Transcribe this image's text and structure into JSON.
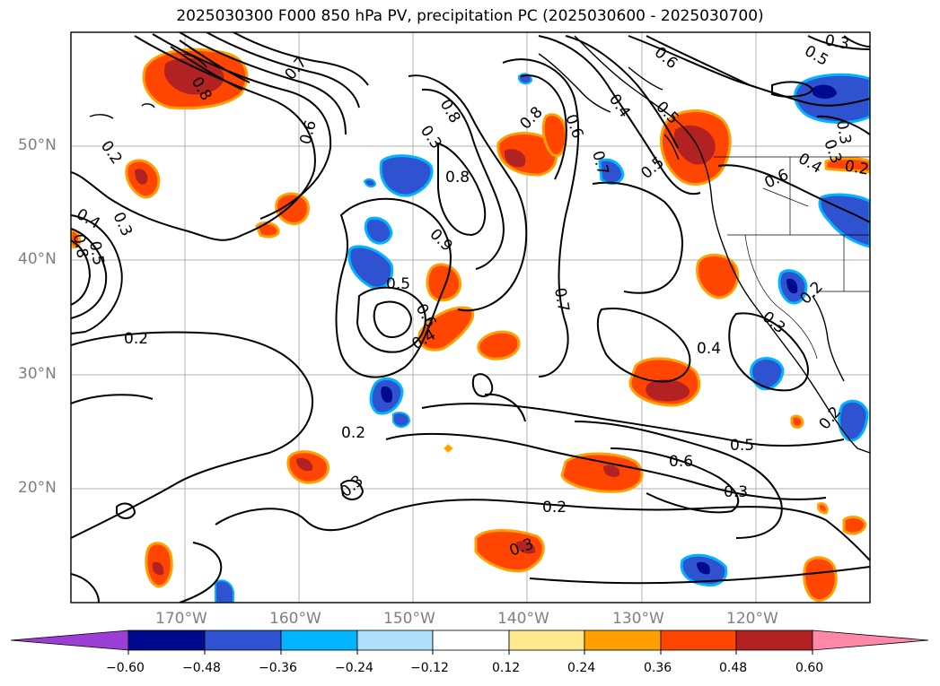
{
  "title": "2025030300 F000 850 hPa PV, precipitation PC (2025030600 - 2025030700)",
  "lat_labels": [
    "50°N",
    "40°N",
    "30°N",
    "20°N"
  ],
  "lon_labels": [
    "170°W",
    "160°W",
    "150°W",
    "140°W",
    "130°W",
    "120°W"
  ],
  "colorbar": {
    "ticks": [
      "−0.60",
      "−0.48",
      "−0.36",
      "−0.24",
      "−0.12",
      "0.12",
      "0.24",
      "0.36",
      "0.48",
      "0.60"
    ],
    "colors": [
      "#9a3ed6",
      "#000a8f",
      "#2f52d0",
      "#00b4ff",
      "#aee0fb",
      "#ffffff",
      "#ffe98f",
      "#ffa000",
      "#ff4500",
      "#b22222",
      "#ff88a8"
    ]
  },
  "contour_labels": [
    "0.8",
    "0.7",
    "0.6",
    "0.2",
    "0.4",
    "0.3",
    "0.5",
    "0.8",
    "0.2",
    "0.3",
    "0.5",
    "0.8",
    "0.4",
    "0.8",
    "0.6",
    "0.9",
    "0.8",
    "0.6",
    "0.7",
    "0.7",
    "0.5",
    "0.6",
    "0.4",
    "0.5",
    "0.6",
    "0.3",
    "0.5",
    "0.3",
    "0.3",
    "0.4",
    "0.2",
    "0.3",
    "0.2",
    "0.4",
    "0.5",
    "0.6",
    "0.3",
    "0.2",
    "0.2",
    "0.3",
    "0.2",
    "0.3"
  ]
}
